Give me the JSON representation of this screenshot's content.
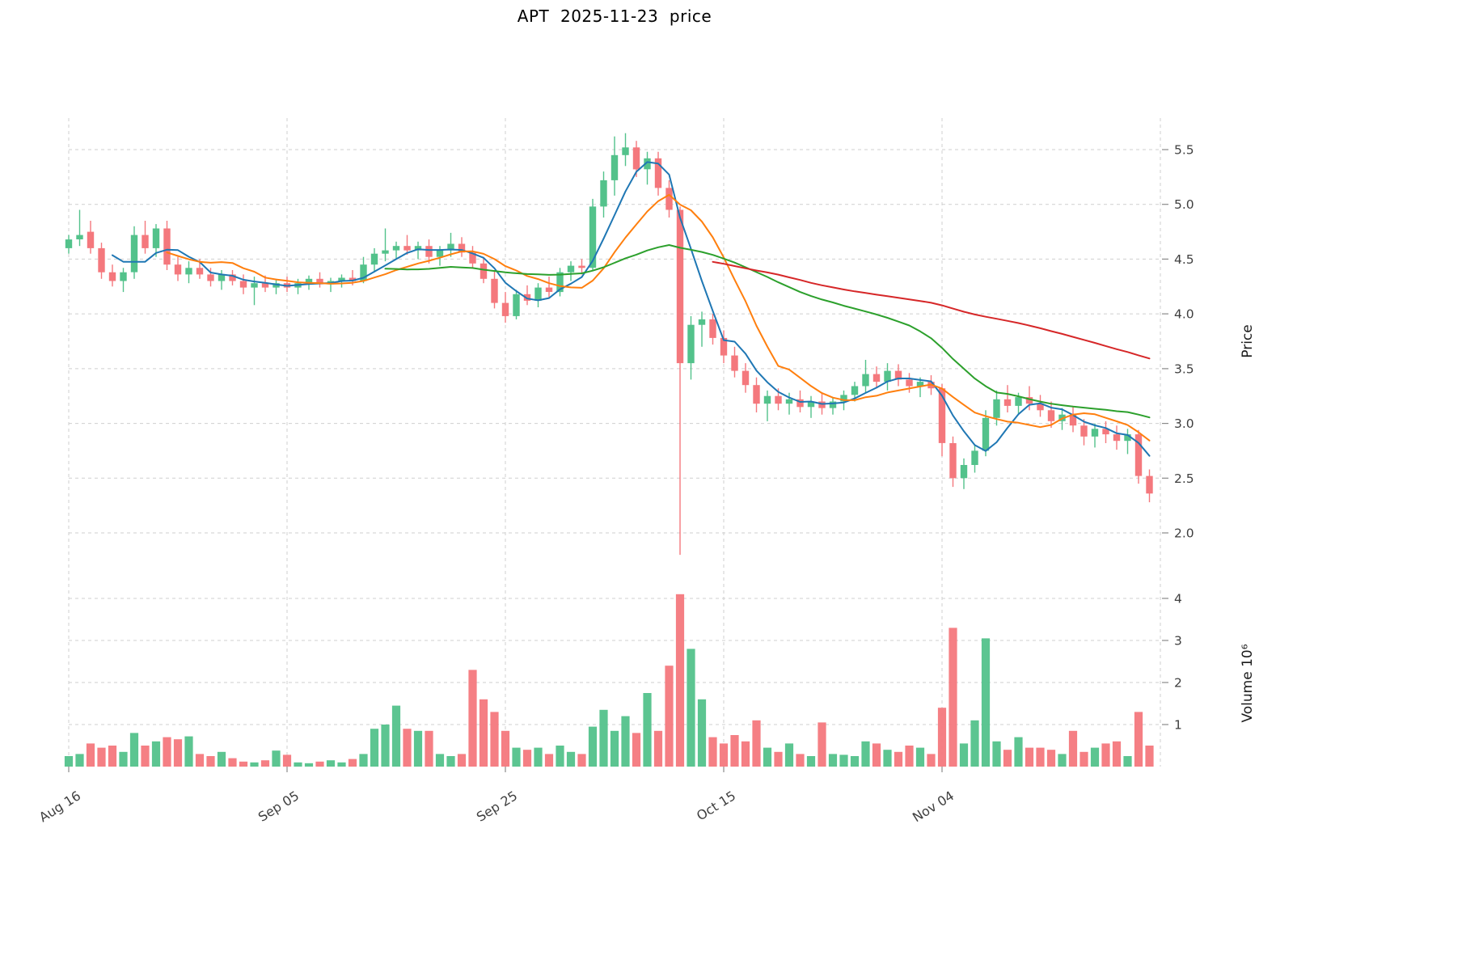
{
  "chart_data": {
    "type": "candlestick",
    "title": "APT  2025-11-23  price",
    "has_volume_panel": true,
    "price_axis_range": [
      1.55,
      5.95
    ],
    "volume_axis_range": [
      0,
      4.4
    ],
    "colors": {
      "up": "#53c28b",
      "down": "#f4787d"
    },
    "moving_averages": [
      {
        "name": "MA5",
        "period": 5,
        "color": "#1f77b4"
      },
      {
        "name": "MA10",
        "period": 10,
        "color": "#ff7f0e"
      },
      {
        "name": "MA30",
        "period": 30,
        "color": "#2ca02c"
      },
      {
        "name": "MA60",
        "period": 60,
        "color": "#d62728"
      }
    ],
    "ohlc": [
      [
        4.6,
        4.72,
        4.55,
        4.68
      ],
      [
        4.68,
        4.95,
        4.62,
        4.72
      ],
      [
        4.75,
        4.85,
        4.55,
        4.6
      ],
      [
        4.6,
        4.65,
        4.32,
        4.38
      ],
      [
        4.38,
        4.45,
        4.25,
        4.3
      ],
      [
        4.3,
        4.42,
        4.2,
        4.38
      ],
      [
        4.38,
        4.8,
        4.32,
        4.72
      ],
      [
        4.72,
        4.85,
        4.55,
        4.6
      ],
      [
        4.6,
        4.82,
        4.52,
        4.78
      ],
      [
        4.78,
        4.85,
        4.4,
        4.45
      ],
      [
        4.45,
        4.52,
        4.3,
        4.36
      ],
      [
        4.36,
        4.48,
        4.28,
        4.42
      ],
      [
        4.42,
        4.5,
        4.32,
        4.36
      ],
      [
        4.36,
        4.42,
        4.25,
        4.3
      ],
      [
        4.3,
        4.4,
        4.22,
        4.36
      ],
      [
        4.36,
        4.4,
        4.26,
        4.3
      ],
      [
        4.3,
        4.36,
        4.18,
        4.24
      ],
      [
        4.24,
        4.34,
        4.08,
        4.28
      ],
      [
        4.28,
        4.35,
        4.2,
        4.24
      ],
      [
        4.24,
        4.32,
        4.18,
        4.28
      ],
      [
        4.28,
        4.34,
        4.2,
        4.24
      ],
      [
        4.24,
        4.32,
        4.18,
        4.28
      ],
      [
        4.28,
        4.35,
        4.22,
        4.32
      ],
      [
        4.32,
        4.38,
        4.24,
        4.27
      ],
      [
        4.27,
        4.33,
        4.2,
        4.3
      ],
      [
        4.3,
        4.36,
        4.24,
        4.33
      ],
      [
        4.33,
        4.4,
        4.26,
        4.3
      ],
      [
        4.3,
        4.52,
        4.28,
        4.45
      ],
      [
        4.45,
        4.6,
        4.38,
        4.55
      ],
      [
        4.55,
        4.78,
        4.48,
        4.58
      ],
      [
        4.58,
        4.66,
        4.5,
        4.62
      ],
      [
        4.62,
        4.72,
        4.54,
        4.58
      ],
      [
        4.58,
        4.66,
        4.5,
        4.62
      ],
      [
        4.62,
        4.68,
        4.46,
        4.52
      ],
      [
        4.52,
        4.62,
        4.44,
        4.58
      ],
      [
        4.58,
        4.74,
        4.52,
        4.64
      ],
      [
        4.64,
        4.7,
        4.52,
        4.56
      ],
      [
        4.56,
        4.62,
        4.42,
        4.46
      ],
      [
        4.46,
        4.52,
        4.28,
        4.32
      ],
      [
        4.32,
        4.4,
        4.05,
        4.1
      ],
      [
        4.1,
        4.2,
        3.92,
        3.98
      ],
      [
        3.98,
        4.22,
        3.95,
        4.18
      ],
      [
        4.18,
        4.26,
        4.08,
        4.12
      ],
      [
        4.12,
        4.28,
        4.06,
        4.24
      ],
      [
        4.24,
        4.34,
        4.15,
        4.2
      ],
      [
        4.2,
        4.42,
        4.16,
        4.38
      ],
      [
        4.38,
        4.48,
        4.3,
        4.44
      ],
      [
        4.44,
        4.5,
        4.36,
        4.42
      ],
      [
        4.42,
        5.05,
        4.4,
        4.98
      ],
      [
        4.98,
        5.3,
        4.88,
        5.22
      ],
      [
        5.22,
        5.62,
        5.08,
        5.45
      ],
      [
        5.45,
        5.65,
        5.35,
        5.52
      ],
      [
        5.52,
        5.58,
        5.25,
        5.32
      ],
      [
        5.32,
        5.48,
        5.18,
        5.42
      ],
      [
        5.42,
        5.48,
        5.08,
        5.15
      ],
      [
        5.15,
        5.22,
        4.88,
        4.95
      ],
      [
        4.95,
        4.98,
        1.8,
        3.55
      ],
      [
        3.55,
        3.98,
        3.4,
        3.9
      ],
      [
        3.9,
        4.02,
        3.7,
        3.95
      ],
      [
        3.95,
        4.0,
        3.72,
        3.78
      ],
      [
        3.78,
        3.85,
        3.55,
        3.62
      ],
      [
        3.62,
        3.7,
        3.42,
        3.48
      ],
      [
        3.48,
        3.55,
        3.28,
        3.35
      ],
      [
        3.35,
        3.42,
        3.1,
        3.18
      ],
      [
        3.18,
        3.3,
        3.02,
        3.25
      ],
      [
        3.25,
        3.32,
        3.12,
        3.18
      ],
      [
        3.18,
        3.28,
        3.08,
        3.22
      ],
      [
        3.22,
        3.3,
        3.1,
        3.15
      ],
      [
        3.15,
        3.25,
        3.05,
        3.2
      ],
      [
        3.2,
        3.28,
        3.08,
        3.14
      ],
      [
        3.14,
        3.24,
        3.08,
        3.2
      ],
      [
        3.2,
        3.3,
        3.12,
        3.26
      ],
      [
        3.26,
        3.38,
        3.2,
        3.34
      ],
      [
        3.34,
        3.58,
        3.28,
        3.45
      ],
      [
        3.45,
        3.52,
        3.32,
        3.38
      ],
      [
        3.38,
        3.55,
        3.3,
        3.48
      ],
      [
        3.48,
        3.54,
        3.34,
        3.4
      ],
      [
        3.4,
        3.46,
        3.28,
        3.34
      ],
      [
        3.34,
        3.42,
        3.24,
        3.38
      ],
      [
        3.38,
        3.44,
        3.26,
        3.32
      ],
      [
        3.32,
        3.36,
        2.7,
        2.82
      ],
      [
        2.82,
        2.88,
        2.42,
        2.5
      ],
      [
        2.5,
        2.68,
        2.4,
        2.62
      ],
      [
        2.62,
        2.8,
        2.55,
        2.75
      ],
      [
        2.75,
        3.12,
        2.7,
        3.05
      ],
      [
        3.05,
        3.3,
        2.98,
        3.22
      ],
      [
        3.22,
        3.35,
        3.1,
        3.16
      ],
      [
        3.16,
        3.28,
        3.08,
        3.24
      ],
      [
        3.24,
        3.34,
        3.12,
        3.18
      ],
      [
        3.18,
        3.26,
        3.06,
        3.12
      ],
      [
        3.12,
        3.2,
        2.96,
        3.02
      ],
      [
        3.02,
        3.14,
        2.94,
        3.08
      ],
      [
        3.08,
        3.16,
        2.92,
        2.98
      ],
      [
        2.98,
        3.04,
        2.8,
        2.88
      ],
      [
        2.88,
        3.0,
        2.78,
        2.95
      ],
      [
        2.95,
        3.02,
        2.82,
        2.9
      ],
      [
        2.9,
        2.98,
        2.76,
        2.84
      ],
      [
        2.84,
        2.95,
        2.72,
        2.9
      ],
      [
        2.9,
        2.94,
        2.45,
        2.52
      ],
      [
        2.52,
        2.58,
        2.28,
        2.36
      ]
    ],
    "volume_millions": [
      0.25,
      0.3,
      0.55,
      0.45,
      0.5,
      0.35,
      0.8,
      0.5,
      0.6,
      0.7,
      0.65,
      0.72,
      0.3,
      0.25,
      0.35,
      0.2,
      0.12,
      0.1,
      0.15,
      0.38,
      0.28,
      0.1,
      0.08,
      0.12,
      0.15,
      0.1,
      0.18,
      0.3,
      0.9,
      1.0,
      1.45,
      0.9,
      0.85,
      0.85,
      0.3,
      0.25,
      0.3,
      2.3,
      1.6,
      1.3,
      0.85,
      0.45,
      0.4,
      0.45,
      0.3,
      0.5,
      0.35,
      0.3,
      0.95,
      1.35,
      0.85,
      1.2,
      0.8,
      1.75,
      0.85,
      2.4,
      4.1,
      2.8,
      1.6,
      0.7,
      0.55,
      0.75,
      0.6,
      1.1,
      0.45,
      0.35,
      0.55,
      0.3,
      0.25,
      1.05,
      0.3,
      0.28,
      0.25,
      0.6,
      0.55,
      0.4,
      0.35,
      0.5,
      0.45,
      0.3,
      1.4,
      3.3,
      0.55,
      1.1,
      3.05,
      0.6,
      0.4,
      0.7,
      0.45,
      0.45,
      0.4,
      0.3,
      0.85,
      0.35,
      0.45,
      0.55,
      0.6,
      0.25,
      1.3,
      0.5
    ]
  },
  "axes": {
    "price_axis_title": "Price",
    "volume_axis_title": "Volume  10⁶",
    "price_ticks": [
      2.0,
      2.5,
      3.0,
      3.5,
      4.0,
      4.5,
      5.0,
      5.5
    ],
    "volume_ticks": [
      1,
      2,
      3,
      4
    ],
    "x_ticks": [
      {
        "index": 0,
        "label": "Aug 16"
      },
      {
        "index": 20,
        "label": "Sep 05"
      },
      {
        "index": 40,
        "label": "Sep 25"
      },
      {
        "index": 60,
        "label": "Oct 15"
      },
      {
        "index": 80,
        "label": "Nov 04"
      }
    ],
    "grid_day_indices": [
      0,
      20,
      40,
      60,
      80,
      100
    ]
  }
}
